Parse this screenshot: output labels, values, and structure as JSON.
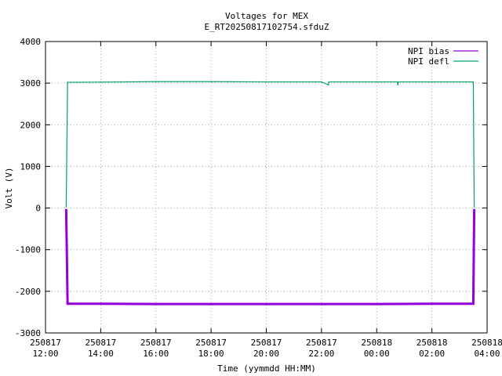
{
  "chart_data": {
    "type": "line",
    "title": "Voltages for MEX",
    "subtitle": "E_RT20250817102754.sfduZ",
    "xlabel": "Time (yymmdd HH:MM)",
    "ylabel": "Volt (V)",
    "xlim": [
      "2025-08-17 12:00",
      "2025-08-18 04:00"
    ],
    "ylim": [
      -3000,
      4000
    ],
    "grid": true,
    "legend_position": "top-right",
    "y_ticks": [
      {
        "value": -3000,
        "label": "-3000"
      },
      {
        "value": -2000,
        "label": "-2000"
      },
      {
        "value": -1000,
        "label": "-1000"
      },
      {
        "value": 0,
        "label": "0"
      },
      {
        "value": 1000,
        "label": "1000"
      },
      {
        "value": 2000,
        "label": "2000"
      },
      {
        "value": 3000,
        "label": "3000"
      },
      {
        "value": 4000,
        "label": "4000"
      }
    ],
    "x_ticks": [
      {
        "value": "2025-08-17 12:00",
        "date": "250817",
        "time": "12:00"
      },
      {
        "value": "2025-08-17 14:00",
        "date": "250817",
        "time": "14:00"
      },
      {
        "value": "2025-08-17 16:00",
        "date": "250817",
        "time": "16:00"
      },
      {
        "value": "2025-08-17 18:00",
        "date": "250817",
        "time": "18:00"
      },
      {
        "value": "2025-08-17 20:00",
        "date": "250817",
        "time": "20:00"
      },
      {
        "value": "2025-08-17 22:00",
        "date": "250817",
        "time": "22:00"
      },
      {
        "value": "2025-08-18 00:00",
        "date": "250818",
        "time": "00:00"
      },
      {
        "value": "2025-08-18 02:00",
        "date": "250818",
        "time": "02:00"
      },
      {
        "value": "2025-08-18 04:00",
        "date": "250818",
        "time": "04:00"
      }
    ],
    "series": [
      {
        "name": "NPI bias",
        "color": "#9400d3",
        "points": [
          [
            "2025-08-17 12:45",
            -30
          ],
          [
            "2025-08-17 12:48",
            -2300
          ],
          [
            "2025-08-17 14:00",
            -2300
          ],
          [
            "2025-08-17 16:00",
            -2305
          ],
          [
            "2025-08-17 18:00",
            -2305
          ],
          [
            "2025-08-17 20:00",
            -2305
          ],
          [
            "2025-08-17 22:00",
            -2305
          ],
          [
            "2025-08-18 00:00",
            -2305
          ],
          [
            "2025-08-18 02:00",
            -2300
          ],
          [
            "2025-08-18 03:30",
            -2300
          ],
          [
            "2025-08-18 03:32",
            -30
          ]
        ]
      },
      {
        "name": "NPI defl",
        "color": "#009e73",
        "points": [
          [
            "2025-08-17 12:45",
            30
          ],
          [
            "2025-08-17 12:48",
            3020
          ],
          [
            "2025-08-17 14:00",
            3025
          ],
          [
            "2025-08-17 16:00",
            3035
          ],
          [
            "2025-08-17 18:00",
            3035
          ],
          [
            "2025-08-17 20:00",
            3030
          ],
          [
            "2025-08-17 22:00",
            3030
          ],
          [
            "2025-08-17 22:15",
            2960
          ],
          [
            "2025-08-17 22:16",
            3030
          ],
          [
            "2025-08-18 00:00",
            3030
          ],
          [
            "2025-08-18 00:45",
            3030
          ],
          [
            "2025-08-18 00:46",
            2960
          ],
          [
            "2025-08-18 00:47",
            3030
          ],
          [
            "2025-08-18 03:30",
            3030
          ],
          [
            "2025-08-18 03:32",
            30
          ]
        ]
      }
    ]
  }
}
